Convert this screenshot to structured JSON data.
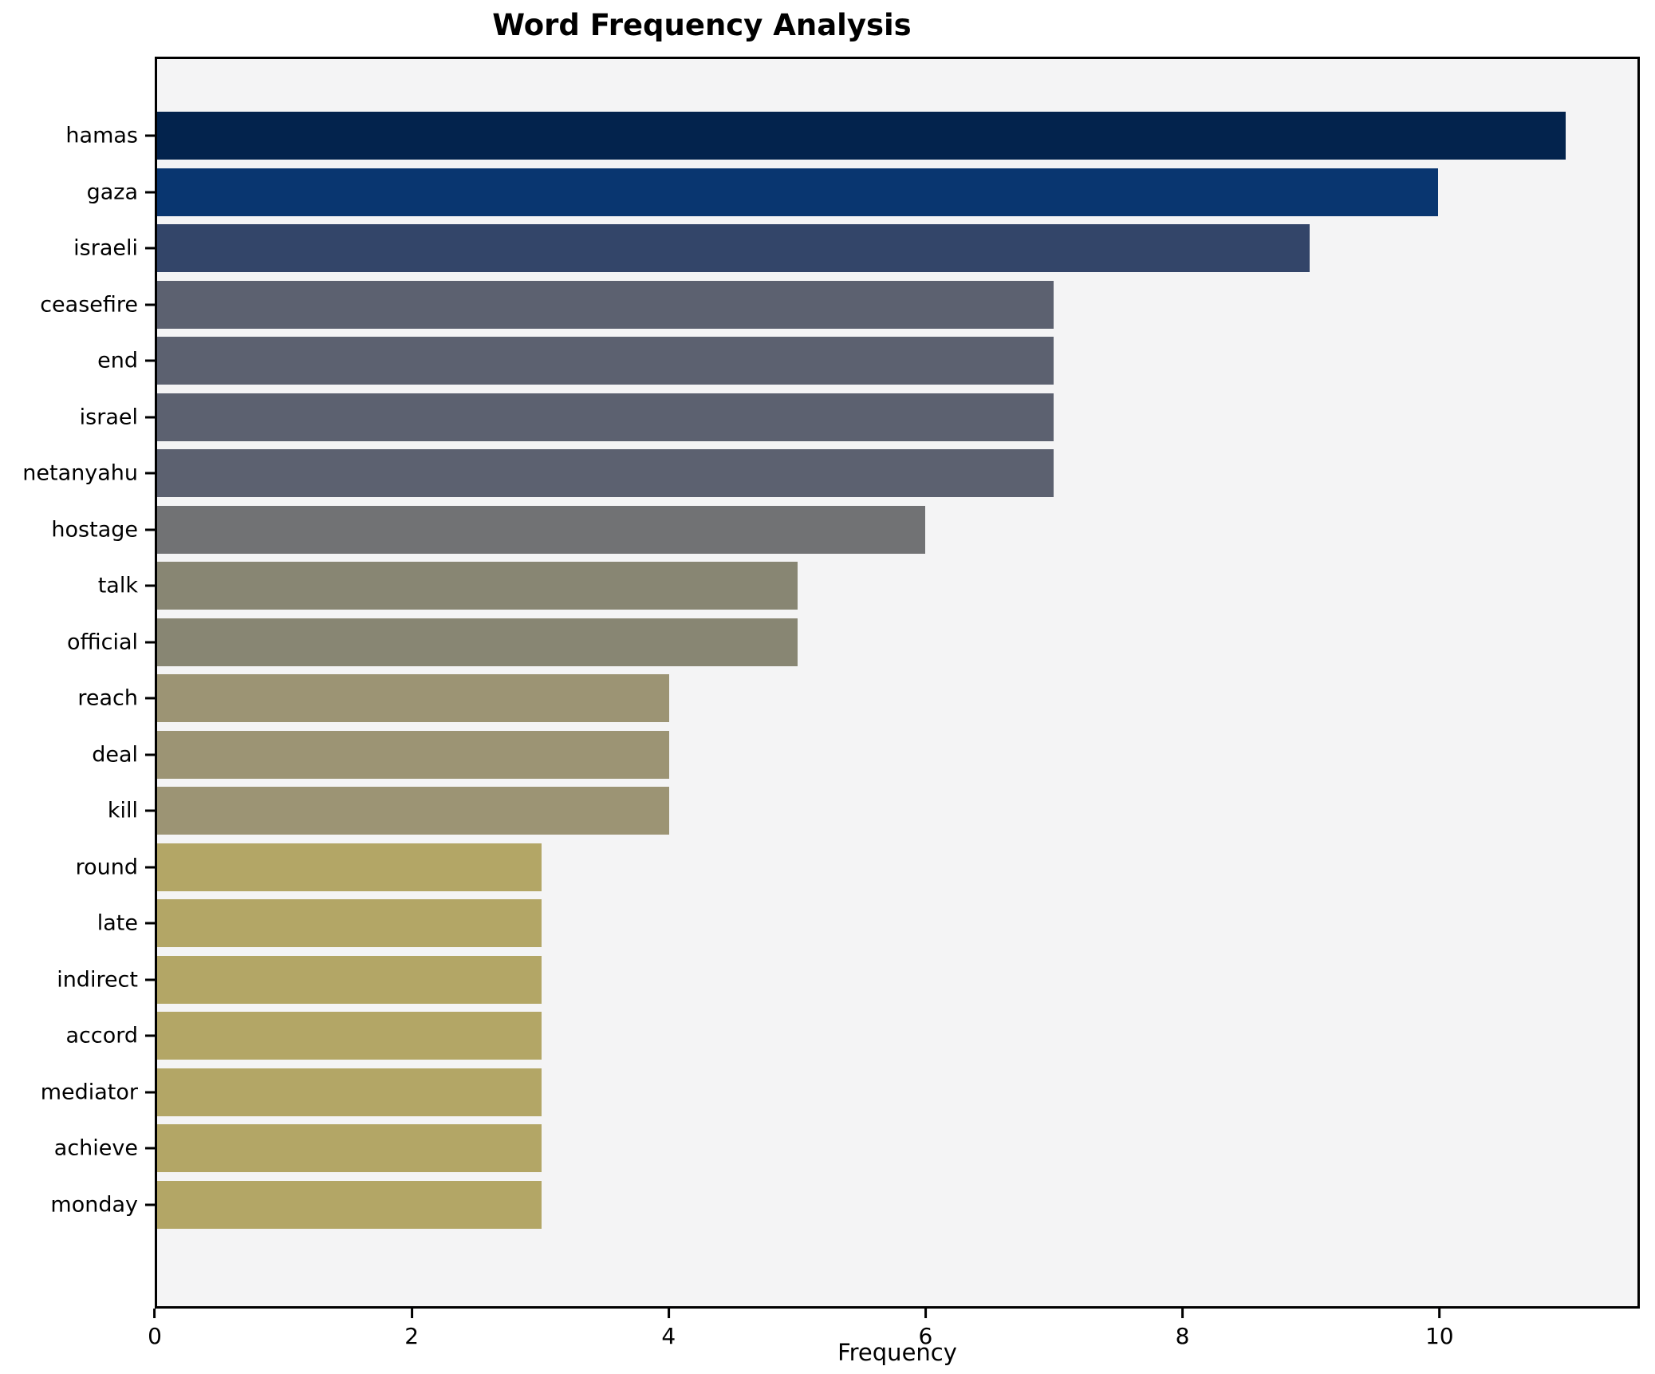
{
  "chart_data": {
    "type": "bar",
    "orientation": "horizontal",
    "title": "Word Frequency Analysis",
    "xlabel": "Frequency",
    "ylabel": "",
    "categories": [
      "hamas",
      "gaza",
      "israeli",
      "ceasefire",
      "end",
      "israel",
      "netanyahu",
      "hostage",
      "talk",
      "official",
      "reach",
      "deal",
      "kill",
      "round",
      "late",
      "indirect",
      "accord",
      "mediator",
      "achieve",
      "monday"
    ],
    "values": [
      11,
      10,
      9,
      7,
      7,
      7,
      7,
      6,
      5,
      5,
      4,
      4,
      4,
      3,
      3,
      3,
      3,
      3,
      3,
      3
    ],
    "bar_colors": [
      "#03234d",
      "#093670",
      "#334569",
      "#5c6170",
      "#5c6170",
      "#5c6170",
      "#5c6170",
      "#717274",
      "#888673",
      "#888673",
      "#9c9474",
      "#9c9474",
      "#9c9474",
      "#b3a666",
      "#b3a666",
      "#b3a666",
      "#b3a666",
      "#b3a666",
      "#b3a666",
      "#b3a666"
    ],
    "xticks": [
      0,
      2,
      4,
      6,
      8,
      10
    ],
    "xlim": [
      0,
      11.56
    ],
    "grid": false,
    "legend_position": "none",
    "plot_background": "#f4f4f5",
    "figure_background": "#ffffff",
    "spine_color": "#000000"
  }
}
